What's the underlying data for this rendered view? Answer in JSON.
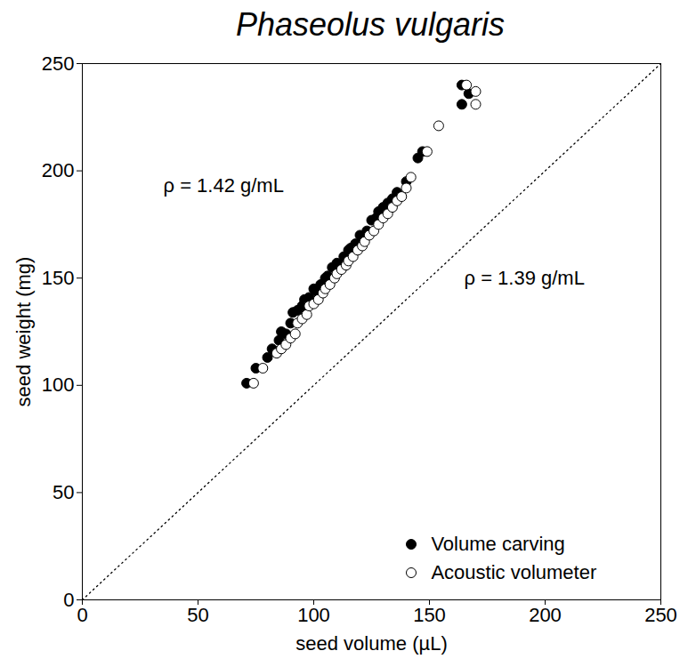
{
  "chart_data": {
    "type": "scatter",
    "title": "Phaseolus vulgaris",
    "x_label": "seed volume (µL)",
    "y_label": "seed weight (mg)",
    "xlim": [
      0,
      250
    ],
    "ylim": [
      0,
      250
    ],
    "xticks": [
      0,
      50,
      100,
      150,
      200,
      250
    ],
    "yticks": [
      0,
      50,
      100,
      150,
      200,
      250
    ],
    "grid": false,
    "legend": "lower-right",
    "series": [
      {
        "name": "Volume carving",
        "color": "#000000",
        "marker": "circle",
        "x": [
          71,
          75,
          80,
          82,
          85,
          86,
          88,
          90,
          91,
          93,
          95,
          96,
          98,
          100,
          101,
          103,
          105,
          106,
          108,
          110,
          111,
          113,
          115,
          116,
          118,
          120,
          121,
          123,
          125,
          127,
          128,
          130,
          132,
          134,
          136,
          140,
          145,
          147,
          164,
          164,
          167
        ],
        "values": [
          101,
          108,
          113,
          117,
          121,
          125,
          124,
          129,
          134,
          135,
          137,
          140,
          141,
          145,
          144,
          147,
          150,
          151,
          155,
          157,
          156,
          160,
          163,
          164,
          166,
          170,
          168,
          172,
          177,
          178,
          181,
          183,
          185,
          187,
          190,
          195,
          206,
          209,
          240,
          231,
          236
        ]
      },
      {
        "name": "Acoustic volumeter",
        "color": "#000000",
        "marker": "open_circle",
        "x": [
          74,
          78,
          84,
          86,
          88,
          90,
          92,
          93,
          95,
          97,
          98,
          100,
          102,
          104,
          105,
          107,
          109,
          110,
          112,
          114,
          115,
          117,
          119,
          121,
          122,
          124,
          126,
          128,
          130,
          132,
          134,
          136,
          138,
          140,
          142,
          149,
          154,
          166,
          170,
          170
        ],
        "values": [
          101,
          108,
          115,
          117,
          119,
          122,
          124,
          129,
          131,
          133,
          137,
          138,
          140,
          143,
          145,
          147,
          150,
          152,
          154,
          156,
          158,
          160,
          163,
          165,
          167,
          170,
          172,
          175,
          178,
          180,
          183,
          186,
          188,
          192,
          197,
          209,
          221,
          240,
          237,
          231
        ]
      }
    ],
    "reference_line": {
      "x": [
        0,
        250
      ],
      "y": [
        0,
        250
      ],
      "line_style": "dotted",
      "color": "#000000"
    },
    "annotations": [
      {
        "text": "ρ = 1.42 g/mL",
        "x": 35,
        "y": 193
      },
      {
        "text": "ρ = 1.39 g/mL",
        "x": 165,
        "y": 150
      }
    ]
  }
}
